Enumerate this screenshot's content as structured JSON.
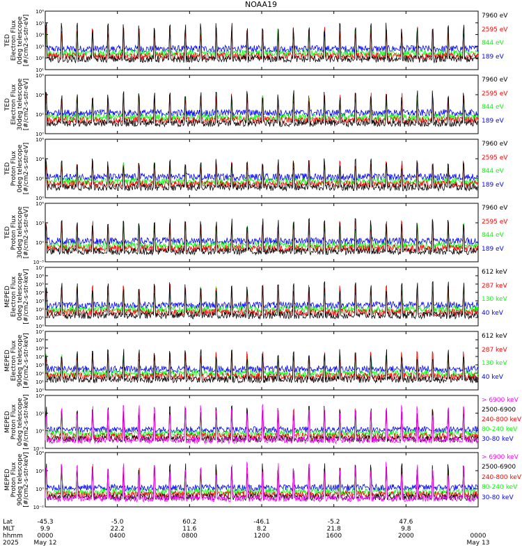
{
  "title": "NOAA19",
  "colors": {
    "blue": "#0000ff",
    "red": "#ff0000",
    "green": "#00ff00",
    "black": "#000000",
    "magenta": "#ff00ff"
  },
  "panels": [
    {
      "label": [
        "TED",
        "Electron Flux",
        "0deg telescope",
        "[#/cm2-s-str-eV]"
      ],
      "yticks": [
        "10¹",
        "10²",
        "10³",
        "10⁴",
        "10⁵",
        "10⁶"
      ],
      "ylog": [
        1,
        6
      ],
      "legend": [
        {
          "text": "7960 eV",
          "color": "black"
        },
        {
          "text": "2595 eV",
          "color": "red"
        },
        {
          "text": "844 eV",
          "color": "green"
        },
        {
          "text": "189 eV",
          "color": "blue"
        }
      ]
    },
    {
      "label": [
        "TED",
        "Electron Flux",
        "30deg telescope",
        "[#/cm2-s-str-eV]"
      ],
      "yticks": [
        "10⁰",
        "10²",
        "10⁴",
        "10⁶"
      ],
      "ylog": [
        0,
        6
      ],
      "legend": [
        {
          "text": "7960 eV",
          "color": "black"
        },
        {
          "text": "2595 eV",
          "color": "red"
        },
        {
          "text": "844 eV",
          "color": "green"
        },
        {
          "text": "189 eV",
          "color": "blue"
        }
      ]
    },
    {
      "label": [
        "TED",
        "Proton Flux",
        "0deg telescope",
        "[#/cm2-s-str-eV]"
      ],
      "yticks": [
        "10⁰",
        "10²",
        "10⁴",
        "10⁶"
      ],
      "ylog": [
        0,
        6
      ],
      "legend": [
        {
          "text": "7960 eV",
          "color": "black"
        },
        {
          "text": "2595 eV",
          "color": "red"
        },
        {
          "text": "844 eV",
          "color": "green"
        },
        {
          "text": "189 eV",
          "color": "blue"
        }
      ]
    },
    {
      "label": [
        "TED",
        "Proton Flux",
        "30deg telescope",
        "[#/cm2-s-str-eV]"
      ],
      "yticks": [
        "10⁻³",
        "10⁰",
        "10³",
        "10⁶"
      ],
      "ylog": [
        -3,
        6
      ],
      "legend": [
        {
          "text": "7960 eV",
          "color": "black"
        },
        {
          "text": "2595 eV",
          "color": "red"
        },
        {
          "text": "844 eV",
          "color": "green"
        },
        {
          "text": "189 eV",
          "color": "blue"
        }
      ]
    },
    {
      "label": [
        "MEPED",
        "Electron Flux",
        "0deg telescope",
        "[#/cm2-s-str-keV]"
      ],
      "yticks": [
        "10⁰",
        "10¹",
        "10²",
        "10³",
        "10⁴",
        "10⁵",
        "10⁶",
        "10⁷"
      ],
      "ylog": [
        0,
        7
      ],
      "legend": [
        {
          "text": "612 keV",
          "color": "black"
        },
        {
          "text": "287 keV",
          "color": "red"
        },
        {
          "text": "130 keV",
          "color": "green"
        },
        {
          "text": "40 keV",
          "color": "blue"
        }
      ]
    },
    {
      "label": [
        "MEPED",
        "Electron Flux",
        "90deg telescope",
        "[#/cm2-s-str-keV]"
      ],
      "yticks": [
        "10⁰",
        "10¹",
        "10²",
        "10³",
        "10⁴",
        "10⁵",
        "10⁶",
        "10⁷"
      ],
      "ylog": [
        0,
        7
      ],
      "legend": [
        {
          "text": "612 keV",
          "color": "black"
        },
        {
          "text": "287 keV",
          "color": "red"
        },
        {
          "text": "130 keV",
          "color": "green"
        },
        {
          "text": "40 keV",
          "color": "blue"
        }
      ]
    },
    {
      "label": [
        "MEPED",
        "Proton Flux",
        "0deg telescope",
        "[#/cm2-s-str-keV]"
      ],
      "yticks": [
        "10⁻²",
        "10⁰",
        "10²",
        "10⁴"
      ],
      "ylog": [
        -2,
        5
      ],
      "legend": [
        {
          "text": "> 6900 keV",
          "color": "magenta"
        },
        {
          "text": "2500-6900",
          "color": "black"
        },
        {
          "text": "240-800 keV",
          "color": "red"
        },
        {
          "text": "80-240 keV",
          "color": "green"
        },
        {
          "text": "30-80 keV",
          "color": "blue"
        }
      ]
    },
    {
      "label": [
        "MEPED",
        "Proton Flux",
        "90deg telescope",
        "[#/cm2-s-str-keV]"
      ],
      "yticks": [
        "10⁻²",
        "10⁰",
        "10²",
        "10⁴"
      ],
      "ylog": [
        -2,
        5
      ],
      "legend": [
        {
          "text": "> 6900 keV",
          "color": "magenta"
        },
        {
          "text": "2500-6900",
          "color": "black"
        },
        {
          "text": "240-800 keV",
          "color": "red"
        },
        {
          "text": "80-240 keV",
          "color": "green"
        },
        {
          "text": "30-80 keV",
          "color": "blue"
        }
      ]
    }
  ],
  "footer": {
    "row_labels": [
      "Lat",
      "MLT",
      "hhmm",
      "2025"
    ],
    "columns": [
      {
        "lat": "-45.3",
        "mlt": "9.9",
        "hhmm": "0000",
        "date": "May 12"
      },
      {
        "lat": "-5.0",
        "mlt": "22.2",
        "hhmm": "0400",
        "date": ""
      },
      {
        "lat": "60.2",
        "mlt": "11.6",
        "hhmm": "0800",
        "date": ""
      },
      {
        "lat": "-46.1",
        "mlt": "8.2",
        "hhmm": "1200",
        "date": ""
      },
      {
        "lat": "-5.2",
        "mlt": "21.8",
        "hhmm": "1600",
        "date": ""
      },
      {
        "lat": "47.6",
        "mlt": "9.8",
        "hhmm": "2000",
        "date": ""
      },
      {
        "lat": "",
        "mlt": "",
        "hhmm": "0000",
        "date": "May 13"
      }
    ]
  },
  "chart_data": {
    "type": "line",
    "title": "NOAA19",
    "x_axis": {
      "label": "hhmm",
      "ticks": [
        "0000",
        "0400",
        "0800",
        "1200",
        "1600",
        "2000",
        "0000"
      ],
      "range_hours": [
        0,
        24
      ]
    },
    "grid": false,
    "legend_placement": "right",
    "series_note_values": "dense time series per panel; peaks approx 14 orbit passes per day",
    "panel_peak_log10": [
      5.5,
      5.0,
      4.5,
      4.5,
      6.0,
      5.5,
      4.3,
      4.3
    ],
    "orbit_count": 14
  }
}
